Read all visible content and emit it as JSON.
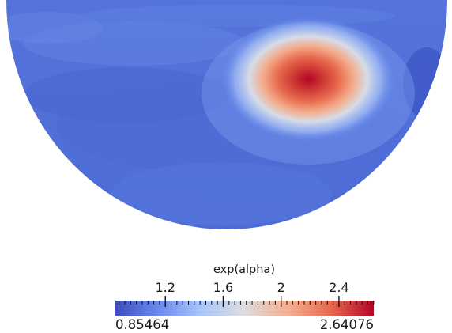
{
  "field": {
    "variable": "exp(alpha)",
    "min": 0.85464,
    "max": 2.64076,
    "background_value": 1.03,
    "shape": "half-disc",
    "peak_value": 2.64
  },
  "colorbar": {
    "title": "exp(alpha)",
    "min_label": "0.85464",
    "max_label": "2.64076",
    "major_ticks": [
      {
        "value": 1.2,
        "label": "1.2"
      },
      {
        "value": 1.6,
        "label": "1.6"
      },
      {
        "value": 2.0,
        "label": "2"
      },
      {
        "value": 2.4,
        "label": "2.4"
      }
    ],
    "minor_tick_step": 0.04,
    "colormap": [
      "#3b4cc0",
      "#6a8bef",
      "#aac7fd",
      "#dddddd",
      "#f7b093",
      "#e7694e",
      "#b40426"
    ]
  }
}
